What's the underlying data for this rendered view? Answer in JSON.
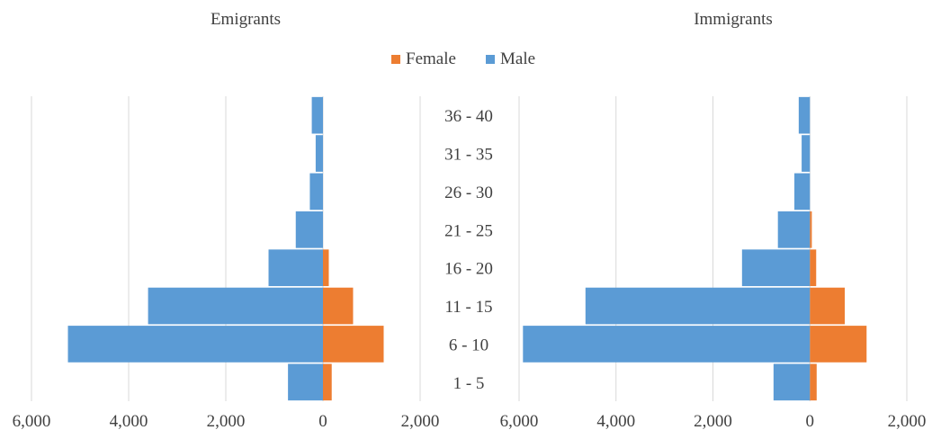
{
  "chart_data": {
    "type": "bar",
    "orientation": "horizontal",
    "layout": "population-pyramid",
    "legend": {
      "position": "top-center",
      "entries": [
        "Female",
        "Male"
      ]
    },
    "colors": {
      "Female": "#ED7D31",
      "Male": "#5B9BD5",
      "grid": "#d9d9d9"
    },
    "categories": [
      "36 - 40",
      "31 - 35",
      "26 - 30",
      "21 - 25",
      "16 - 20",
      "11 - 15",
      "6 - 10",
      "1 - 5"
    ],
    "x_ticks": [
      "6,000",
      "4,000",
      "2,000",
      "0",
      "2,000"
    ],
    "grid": true,
    "panels": [
      {
        "title": "Emigrants",
        "xlim": [
          -6000,
          2000
        ],
        "series": [
          {
            "name": "Female",
            "values": [
              0,
              0,
              0,
              0,
              120,
              620,
              1250,
              180
            ]
          },
          {
            "name": "Male",
            "values": [
              -230,
              -150,
              -270,
              -560,
              -1120,
              -3600,
              -5250,
              -720
            ]
          }
        ]
      },
      {
        "title": "Immigrants",
        "xlim": [
          -6000,
          2000
        ],
        "series": [
          {
            "name": "Female",
            "values": [
              0,
              0,
              0,
              40,
              130,
              720,
              1170,
              140
            ]
          },
          {
            "name": "Male",
            "values": [
              -230,
              -170,
              -320,
              -660,
              -1400,
              -4630,
              -5920,
              -750
            ]
          }
        ]
      }
    ]
  }
}
